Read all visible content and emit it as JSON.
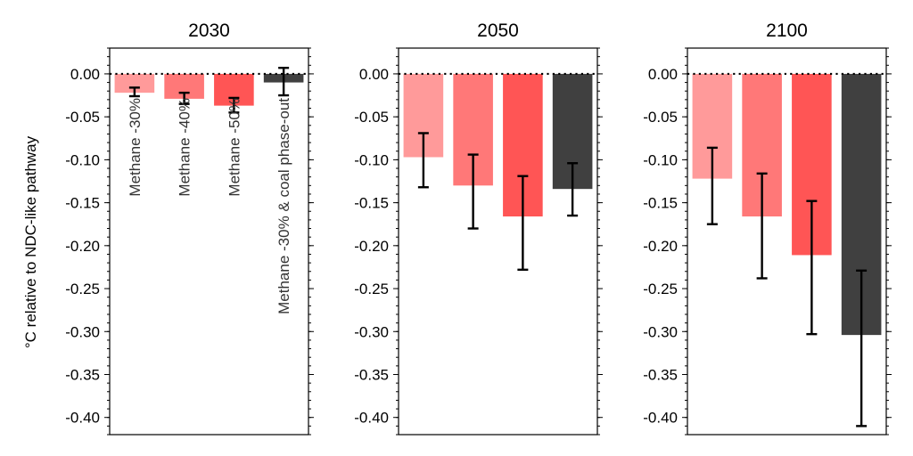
{
  "chart_data": {
    "type": "bar",
    "ylabel": "°C relative to NDC-like pathway",
    "ylim": [
      -0.42,
      0.03
    ],
    "yticks": [
      0.0,
      -0.05,
      -0.1,
      -0.15,
      -0.2,
      -0.25,
      -0.3,
      -0.35,
      -0.4
    ],
    "ytick_labels": [
      "0.00",
      "-0.05",
      "-0.10",
      "-0.15",
      "-0.20",
      "-0.25",
      "-0.30",
      "-0.35",
      "-0.40"
    ],
    "categories": [
      "Methane -30%",
      "Methane -40%",
      "Methane -50%",
      "Methane -30% & coal phase-out"
    ],
    "colors": [
      "#ff9a9a",
      "#ff7878",
      "#ff5555",
      "#404040"
    ],
    "zero_line_style": "dotted",
    "panels": [
      {
        "title": "2030",
        "values": [
          -0.022,
          -0.029,
          -0.037,
          -0.01
        ],
        "errors": [
          [
            -0.026,
            -0.016
          ],
          [
            -0.035,
            -0.022
          ],
          [
            -0.045,
            -0.028
          ],
          [
            -0.025,
            0.007
          ]
        ],
        "show_category_labels": true
      },
      {
        "title": "2050",
        "values": [
          -0.097,
          -0.13,
          -0.166,
          -0.134
        ],
        "errors": [
          [
            -0.132,
            -0.069
          ],
          [
            -0.18,
            -0.094
          ],
          [
            -0.228,
            -0.119
          ],
          [
            -0.165,
            -0.104
          ]
        ],
        "show_category_labels": false
      },
      {
        "title": "2100",
        "values": [
          -0.122,
          -0.166,
          -0.211,
          -0.304
        ],
        "errors": [
          [
            -0.175,
            -0.086
          ],
          [
            -0.238,
            -0.116
          ],
          [
            -0.303,
            -0.148
          ],
          [
            -0.41,
            -0.229
          ]
        ],
        "show_category_labels": false
      }
    ]
  }
}
